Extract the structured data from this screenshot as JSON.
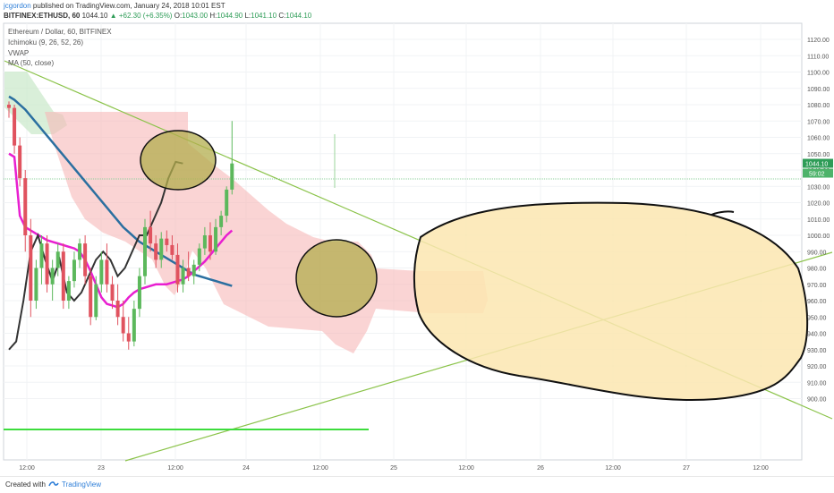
{
  "header": {
    "user": "jcgordon",
    "published_text": "published on TradingView.com, January 24, 2018 10:01 EST",
    "symbol": "BITFINEX:ETHUSD, 60",
    "last": "1044.10",
    "change": "▲ +62.30 (+6.35%)",
    "o_label": "O:",
    "o_value": "1043.00",
    "h_label": "H:",
    "h_value": "1044.90",
    "l_label": "L:",
    "l_value": "1041.10",
    "c_label": "C:",
    "c_value": "1044.10"
  },
  "legend": {
    "title": "Ethereum / Dollar, 60, BITFINEX",
    "ichimoku": "Ichimoku (9, 26, 52, 26)",
    "vwap": "VWAP",
    "ma": "MA (50, close)"
  },
  "footer": {
    "created_with": "Created with",
    "brand": "TradingView"
  },
  "colors": {
    "up": "#5cb85c",
    "down": "#e0535f",
    "ma": "#2b6fa0",
    "vwap": "#e81fd0",
    "cloud_bear": "#f7b8b8",
    "cloud_bull": "#c9e8c9",
    "trendline": "#8bc34a",
    "support": "#3ddc3d",
    "blob_fill": "#fbe6b0",
    "circle_fill": "#b3ad4e"
  },
  "chart_data": {
    "type": "candlestick",
    "y_range": [
      895,
      1125
    ],
    "y_ticks": [
      900,
      910,
      920,
      930,
      940,
      950,
      960,
      970,
      980,
      990,
      1000,
      1010,
      1020,
      1030,
      1040,
      1050,
      1060,
      1070,
      1080,
      1090,
      1100,
      1110,
      1120
    ],
    "x_ticks": [
      "12:00",
      "23",
      "12:00",
      "24",
      "12:00",
      "25",
      "12:00",
      "26",
      "12:00",
      "27",
      "12:00"
    ],
    "price_tags": [
      "1044.10",
      "59:02"
    ],
    "candles": [
      {
        "o": 1080,
        "h": 1082,
        "l": 1072,
        "c": 1078
      },
      {
        "o": 1078,
        "h": 1080,
        "l": 1050,
        "c": 1055
      },
      {
        "o": 1055,
        "h": 1060,
        "l": 1030,
        "c": 1035
      },
      {
        "o": 1035,
        "h": 1040,
        "l": 990,
        "c": 1000
      },
      {
        "o": 1000,
        "h": 1010,
        "l": 950,
        "c": 960
      },
      {
        "o": 960,
        "h": 985,
        "l": 955,
        "c": 980
      },
      {
        "o": 980,
        "h": 1000,
        "l": 970,
        "c": 995
      },
      {
        "o": 995,
        "h": 1000,
        "l": 965,
        "c": 970
      },
      {
        "o": 970,
        "h": 985,
        "l": 960,
        "c": 980
      },
      {
        "o": 980,
        "h": 995,
        "l": 975,
        "c": 990
      },
      {
        "o": 990,
        "h": 995,
        "l": 955,
        "c": 960
      },
      {
        "o": 960,
        "h": 975,
        "l": 955,
        "c": 972
      },
      {
        "o": 972,
        "h": 990,
        "l": 968,
        "c": 985
      },
      {
        "o": 985,
        "h": 998,
        "l": 980,
        "c": 995
      },
      {
        "o": 995,
        "h": 1000,
        "l": 970,
        "c": 975
      },
      {
        "o": 975,
        "h": 980,
        "l": 945,
        "c": 950
      },
      {
        "o": 950,
        "h": 975,
        "l": 948,
        "c": 970
      },
      {
        "o": 970,
        "h": 990,
        "l": 965,
        "c": 985
      },
      {
        "o": 985,
        "h": 995,
        "l": 965,
        "c": 970
      },
      {
        "o": 970,
        "h": 975,
        "l": 955,
        "c": 960
      },
      {
        "o": 960,
        "h": 970,
        "l": 945,
        "c": 950
      },
      {
        "o": 950,
        "h": 960,
        "l": 935,
        "c": 940
      },
      {
        "o": 940,
        "h": 950,
        "l": 930,
        "c": 935
      },
      {
        "o": 935,
        "h": 960,
        "l": 932,
        "c": 955
      },
      {
        "o": 955,
        "h": 980,
        "l": 950,
        "c": 975
      },
      {
        "o": 975,
        "h": 1010,
        "l": 970,
        "c": 1005
      },
      {
        "o": 1005,
        "h": 1015,
        "l": 990,
        "c": 995
      },
      {
        "o": 995,
        "h": 1000,
        "l": 980,
        "c": 985
      },
      {
        "o": 985,
        "h": 1002,
        "l": 980,
        "c": 998
      },
      {
        "o": 998,
        "h": 1003,
        "l": 990,
        "c": 994
      },
      {
        "o": 994,
        "h": 1000,
        "l": 985,
        "c": 988
      },
      {
        "o": 988,
        "h": 995,
        "l": 965,
        "c": 970
      },
      {
        "o": 970,
        "h": 985,
        "l": 965,
        "c": 980
      },
      {
        "o": 980,
        "h": 990,
        "l": 972,
        "c": 975
      },
      {
        "o": 975,
        "h": 985,
        "l": 970,
        "c": 982
      },
      {
        "o": 982,
        "h": 995,
        "l": 978,
        "c": 992
      },
      {
        "o": 992,
        "h": 1005,
        "l": 988,
        "c": 1000
      },
      {
        "o": 1000,
        "h": 1008,
        "l": 985,
        "c": 990
      },
      {
        "o": 990,
        "h": 1010,
        "l": 988,
        "c": 1005
      },
      {
        "o": 1005,
        "h": 1015,
        "l": 1000,
        "c": 1012
      },
      {
        "o": 1012,
        "h": 1030,
        "l": 1008,
        "c": 1028
      },
      {
        "o": 1028,
        "h": 1070,
        "l": 1025,
        "c": 1044
      }
    ],
    "ma50": [
      1085,
      1083,
      1080,
      1077,
      1073,
      1069,
      1065,
      1061,
      1057,
      1053,
      1049,
      1045,
      1041,
      1037,
      1033,
      1029,
      1025,
      1021,
      1017,
      1013,
      1009,
      1005,
      1002,
      999,
      996,
      994,
      992,
      990,
      988,
      986,
      984,
      982,
      980,
      978,
      976,
      975,
      974,
      973,
      972,
      971,
      970,
      969
    ],
    "vwap": [
      1050,
      1048,
      1012,
      1005,
      1003,
      1001,
      999,
      997,
      996,
      995,
      994,
      993,
      992,
      990,
      985,
      978,
      970,
      962,
      958,
      957,
      956,
      958,
      962,
      965,
      967,
      968,
      969,
      970,
      970,
      970,
      971,
      972,
      973,
      975,
      978,
      981,
      984,
      988,
      992,
      996,
      1000,
      1003
    ],
    "drawn_line": [
      930,
      935,
      960,
      990,
      1000,
      985,
      972,
      985,
      965,
      960,
      965,
      975,
      985,
      990,
      985,
      975,
      980,
      990,
      1000,
      1000,
      1010,
      1020,
      1035,
      1045,
      1044
    ]
  }
}
